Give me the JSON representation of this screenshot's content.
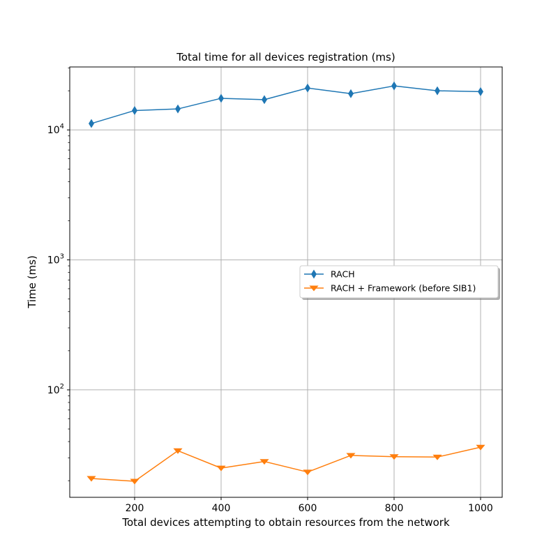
{
  "chart_data": {
    "type": "line",
    "title": "Total time for all devices registration (ms)",
    "xlabel": "Total devices attempting to obtain resources from the network",
    "ylabel": "Time (ms)",
    "x": [
      100,
      200,
      300,
      400,
      500,
      600,
      700,
      800,
      900,
      1000
    ],
    "xlim": [
      50,
      1050
    ],
    "xticks": [
      200,
      400,
      600,
      800,
      1000
    ],
    "yscale": "log",
    "ylim": [
      14.9,
      30500
    ],
    "yticks": [
      {
        "value": 100,
        "base": "10",
        "exp": "2"
      },
      {
        "value": 1000,
        "base": "10",
        "exp": "3"
      },
      {
        "value": 10000,
        "base": "10",
        "exp": "4"
      }
    ],
    "grid": true,
    "legend_position": "center-right",
    "series": [
      {
        "name": "RACH",
        "color": "#1f77b4",
        "marker": "diamond",
        "values": [
          11200,
          14100,
          14500,
          17500,
          17100,
          21000,
          19000,
          21800,
          20000,
          19700
        ]
      },
      {
        "name": "RACH + Framework (before SIB1)",
        "color": "#ff7f0e",
        "marker": "triangle-down",
        "values": [
          20.8,
          19.8,
          34,
          25,
          28.1,
          23.3,
          31.3,
          30.6,
          30.4,
          36.2
        ]
      }
    ]
  }
}
